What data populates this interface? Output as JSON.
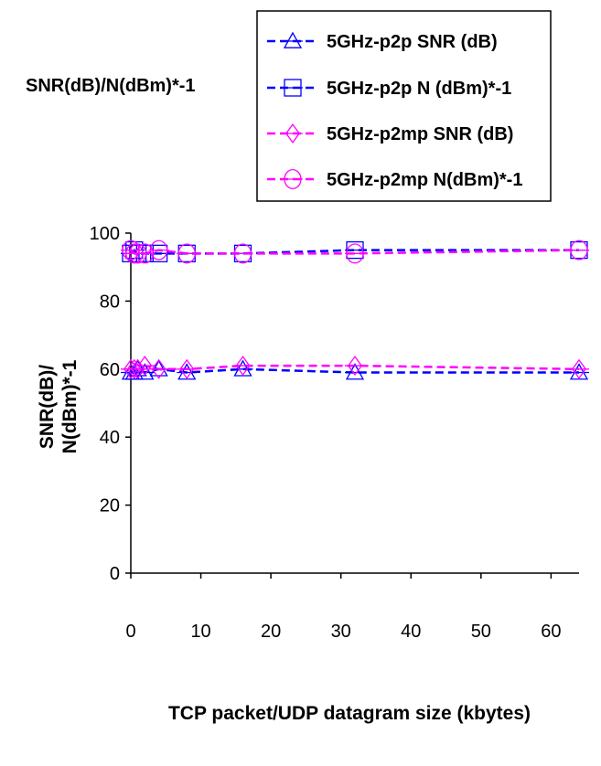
{
  "chart_data": {
    "type": "line",
    "title": "SNR(dB)/N(dBm)*-1",
    "xlabel": "TCP packet/UDP datagram size (kbytes)",
    "ylabel": "SNR(dB)/ N(dBm)*-1",
    "ylabel_lines": [
      "SNR(dB)/",
      "N(dBm)*-1"
    ],
    "xlim": [
      0,
      64
    ],
    "ylim": [
      0,
      100
    ],
    "xticks": [
      0,
      10,
      20,
      30,
      40,
      50,
      60
    ],
    "yticks": [
      0,
      20,
      40,
      60,
      80,
      100
    ],
    "grid": false,
    "legend_position": "top-right",
    "x": [
      0,
      0.5,
      1,
      2,
      4,
      8,
      16,
      32,
      64
    ],
    "series": [
      {
        "name": "5GHz-p2p SNR (dB)",
        "color": "#0000ff",
        "marker": "triangle",
        "values": [
          59,
          59,
          60,
          59,
          60,
          59,
          60,
          59,
          59
        ]
      },
      {
        "name": "5GHz-p2p N (dBm)*-1",
        "color": "#0000ff",
        "marker": "square",
        "values": [
          94,
          95,
          94,
          94,
          94,
          94,
          94,
          95,
          95
        ]
      },
      {
        "name": "5GHz-p2mp SNR (dB)",
        "color": "#ff00ff",
        "marker": "diamond",
        "values": [
          60,
          60,
          60,
          61,
          60,
          60,
          61,
          61,
          60
        ]
      },
      {
        "name": "5GHz-p2mp N(dBm)*-1",
        "color": "#ff00ff",
        "marker": "circle",
        "values": [
          95,
          94,
          94,
          94,
          95,
          94,
          94,
          94,
          95
        ]
      }
    ]
  }
}
